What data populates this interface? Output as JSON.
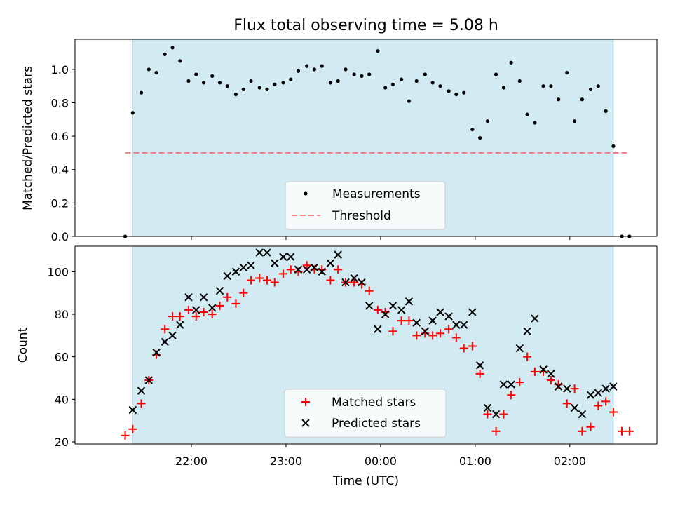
{
  "chart_data": [
    {
      "type": "scatter",
      "title": "Flux total observing time = 5.08 h",
      "ylabel": "Matched/Predicted stars",
      "xlabel": "",
      "ylim": [
        0,
        1.18
      ],
      "yticks": [
        "0.0",
        "0.2",
        "0.4",
        "0.6",
        "0.8",
        "1.0"
      ],
      "x_unit": "hours after 21:00 UTC",
      "xlim": [
        20.77,
        26.92
      ],
      "observing_window": [
        21.38,
        26.46
      ],
      "observing_window_color": "#add8e6",
      "threshold": 0.5,
      "legend_position": "lower center",
      "series": [
        {
          "name": "Measurements",
          "color": "#000000",
          "marker": "dot",
          "x": [
            21.3,
            21.38,
            21.47,
            21.55,
            21.63,
            21.72,
            21.8,
            21.88,
            21.97,
            22.05,
            22.13,
            22.22,
            22.3,
            22.38,
            22.47,
            22.55,
            22.63,
            22.72,
            22.8,
            22.88,
            22.97,
            23.05,
            23.13,
            23.22,
            23.3,
            23.38,
            23.47,
            23.55,
            23.63,
            23.72,
            23.8,
            23.88,
            23.97,
            24.05,
            24.13,
            24.22,
            24.3,
            24.38,
            24.47,
            24.55,
            24.63,
            24.72,
            24.8,
            24.88,
            24.97,
            25.05,
            25.13,
            25.22,
            25.3,
            25.38,
            25.47,
            25.55,
            25.63,
            25.72,
            25.8,
            25.88,
            25.97,
            26.05,
            26.13,
            26.22,
            26.3,
            26.38,
            26.46,
            26.55,
            26.63
          ],
          "y": [
            0.0,
            0.74,
            0.86,
            1.0,
            0.98,
            1.09,
            1.13,
            1.05,
            0.93,
            0.97,
            0.92,
            0.96,
            0.92,
            0.9,
            0.85,
            0.88,
            0.93,
            0.89,
            0.88,
            0.91,
            0.92,
            0.94,
            0.99,
            1.02,
            1.0,
            1.02,
            0.92,
            0.93,
            1.0,
            0.97,
            0.96,
            0.97,
            1.11,
            0.89,
            0.91,
            0.94,
            0.81,
            0.93,
            0.97,
            0.92,
            0.9,
            0.87,
            0.85,
            0.86,
            0.64,
            0.59,
            0.69,
            0.97,
            0.89,
            1.04,
            0.93,
            0.73,
            0.68,
            0.9,
            0.9,
            0.82,
            0.98,
            0.69,
            0.82,
            0.88,
            0.9,
            0.75,
            0.54,
            0.0,
            0.0
          ]
        },
        {
          "name": "Threshold",
          "color": "#f08080",
          "style": "dashed",
          "x": [
            21.3,
            26.63
          ],
          "y": [
            0.5,
            0.5
          ]
        }
      ]
    },
    {
      "type": "scatter",
      "title": "",
      "ylabel": "Count",
      "xlabel": "Time (UTC)",
      "ylim": [
        19,
        112
      ],
      "yticks": [
        "20",
        "40",
        "60",
        "80",
        "100"
      ],
      "xticks": [
        "22:00",
        "23:00",
        "00:00",
        "01:00",
        "02:00"
      ],
      "xtick_values": [
        22,
        23,
        24,
        25,
        26
      ],
      "x_unit": "hours after 21:00 UTC",
      "xlim": [
        20.77,
        26.92
      ],
      "observing_window": [
        21.38,
        26.46
      ],
      "observing_window_color": "#add8e6",
      "legend_position": "lower center",
      "series": [
        {
          "name": "Matched stars",
          "color": "#ff0000",
          "marker": "plus",
          "x": [
            21.3,
            21.38,
            21.47,
            21.55,
            21.63,
            21.72,
            21.8,
            21.88,
            21.97,
            22.05,
            22.13,
            22.22,
            22.3,
            22.38,
            22.47,
            22.55,
            22.63,
            22.72,
            22.8,
            22.88,
            22.97,
            23.05,
            23.13,
            23.22,
            23.3,
            23.38,
            23.47,
            23.55,
            23.63,
            23.72,
            23.8,
            23.88,
            23.97,
            24.05,
            24.13,
            24.22,
            24.3,
            24.38,
            24.47,
            24.55,
            24.63,
            24.72,
            24.8,
            24.88,
            24.97,
            25.05,
            25.13,
            25.22,
            25.3,
            25.38,
            25.47,
            25.55,
            25.63,
            25.72,
            25.8,
            25.88,
            25.97,
            26.05,
            26.13,
            26.22,
            26.3,
            26.38,
            26.46,
            26.55,
            26.63
          ],
          "y": [
            23,
            26,
            38,
            49,
            61,
            73,
            79,
            79,
            82,
            79,
            81,
            80,
            84,
            88,
            85,
            90,
            96,
            97,
            96,
            95,
            99,
            101,
            100,
            103,
            101,
            101,
            96,
            101,
            95,
            95,
            94,
            91,
            82,
            81,
            72,
            77,
            77,
            70,
            71,
            70,
            71,
            73,
            69,
            64,
            65,
            52,
            33,
            25,
            33,
            42,
            48,
            60,
            53,
            53,
            49,
            47,
            38,
            45,
            25,
            27,
            37,
            39,
            34,
            25,
            25
          ]
        },
        {
          "name": "Predicted stars",
          "color": "#000000",
          "marker": "x",
          "x": [
            21.38,
            21.47,
            21.55,
            21.63,
            21.72,
            21.8,
            21.88,
            21.97,
            22.05,
            22.13,
            22.22,
            22.3,
            22.38,
            22.47,
            22.55,
            22.63,
            22.72,
            22.8,
            22.88,
            22.97,
            23.05,
            23.13,
            23.22,
            23.3,
            23.38,
            23.47,
            23.55,
            23.63,
            23.72,
            23.8,
            23.88,
            23.97,
            24.05,
            24.13,
            24.22,
            24.3,
            24.38,
            24.47,
            24.55,
            24.63,
            24.72,
            24.8,
            24.88,
            24.97,
            25.05,
            25.13,
            25.22,
            25.3,
            25.38,
            25.47,
            25.55,
            25.63,
            25.72,
            25.8,
            25.88,
            25.97,
            26.05,
            26.13,
            26.22,
            26.3,
            26.38,
            26.46
          ],
          "y": [
            35,
            44,
            49,
            62,
            67,
            70,
            75,
            88,
            82,
            88,
            83,
            91,
            98,
            100,
            102,
            103,
            109,
            109,
            104,
            107,
            107,
            101,
            101,
            102,
            100,
            104,
            108,
            95,
            97,
            95,
            84,
            73,
            80,
            84,
            82,
            86,
            76,
            72,
            77,
            81,
            79,
            75,
            75,
            81,
            56,
            36,
            33,
            47,
            47,
            64,
            72,
            78,
            54,
            52,
            46,
            45,
            36,
            33,
            42,
            43,
            45,
            46
          ]
        }
      ]
    }
  ]
}
